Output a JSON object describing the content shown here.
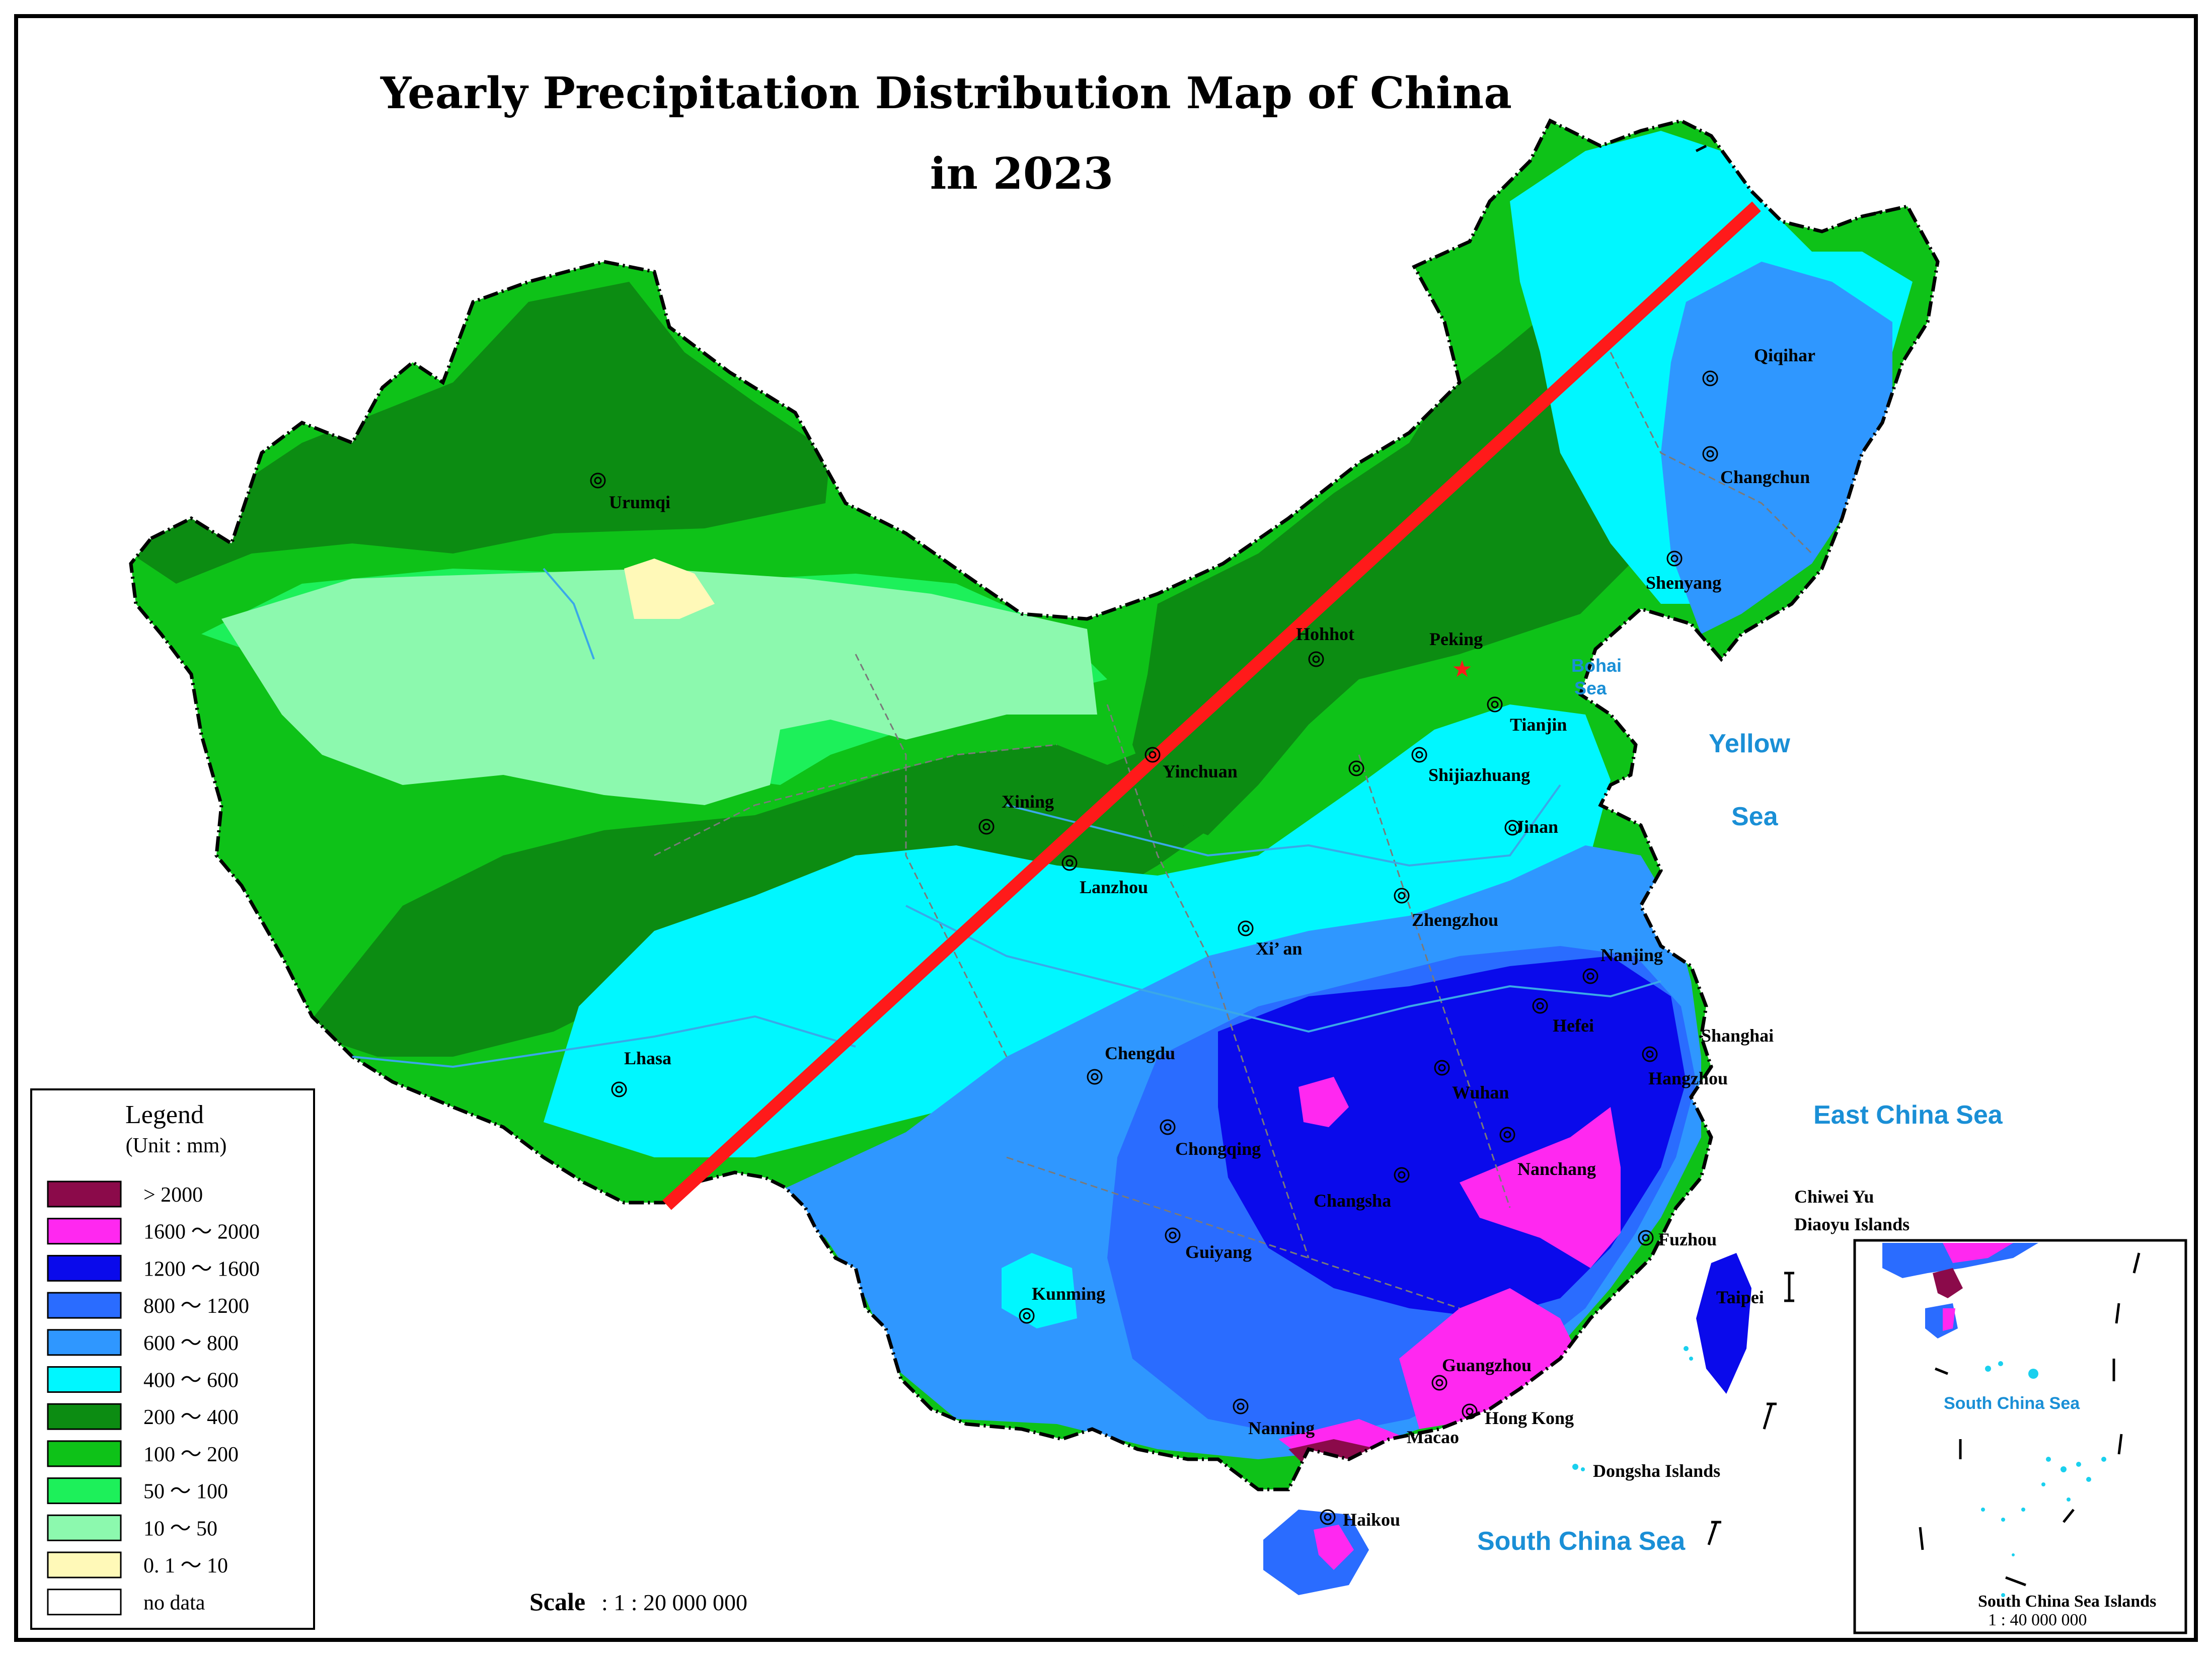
{
  "title": {
    "line1": "Yearly Precipitation Distribution Map of China",
    "line2": "in 2023"
  },
  "legend": {
    "title": "Legend",
    "unit": "(Unit : mm)",
    "items": [
      {
        "label": "> 2000",
        "color": "#8b0a4a"
      },
      {
        "label": "1600 ～ 2000",
        "color": "#ff28f0"
      },
      {
        "label": "1200 ～ 1600",
        "color": "#0a0aeb"
      },
      {
        "label": "800 ～ 1200",
        "color": "#2a6cff"
      },
      {
        "label": "600 ～ 800",
        "color": "#2f97ff"
      },
      {
        "label": "400 ～ 600",
        "color": "#00f7ff"
      },
      {
        "label": "200 ～ 400",
        "color": "#0c8c12"
      },
      {
        "label": "100 ～ 200",
        "color": "#0ec218"
      },
      {
        "label": "50 ～ 100",
        "color": "#1df05a"
      },
      {
        "label": "10 ～ 50",
        "color": "#8cf9ae"
      },
      {
        "label": "0. 1 ～ 10",
        "color": "#fff9b8"
      },
      {
        "label": "no data",
        "color": "#ffffff"
      }
    ]
  },
  "cities": {
    "urumqi": "Urumqi",
    "lhasa": "Lhasa",
    "xining": "Xining",
    "lanzhou": "Lanzhou",
    "yinchuan": "Yinchuan",
    "hohhot": "Hohhot",
    "peking": "Peking",
    "tianjin": "Tianjin",
    "shijiazhuang": "Shijiazhuang",
    "jinan": "Jinan",
    "zhengzhou": "Zhengzhou",
    "xian": "Xi’ an",
    "chengdu": "Chengdu",
    "chongqing": "Chongqing",
    "kunming": "Kunming",
    "guiyang": "Guiyang",
    "nanning": "Nanning",
    "changsha": "Changsha",
    "wuhan": "Wuhan",
    "nanchang": "Nanchang",
    "hefei": "Hefei",
    "nanjing": "Nanjing",
    "shanghai": "Shanghai",
    "hangzhou": "Hangzhou",
    "fuzhou": "Fuzhou",
    "taipei": "Taipei",
    "guangzhou": "Guangzhou",
    "hongkong": "Hong Kong",
    "macao": "Macao",
    "haikou": "Haikou",
    "qiqihar": "Qiqihar",
    "changchun": "Changchun",
    "shenyang": "Shenyang"
  },
  "seas": {
    "bohai_1": "Bohai",
    "bohai_2": "Sea",
    "yellow_1": "Yellow",
    "yellow_2": "Sea",
    "east_china": "East China Sea",
    "south_china": "South China Sea",
    "south_china_inset": "South China Sea"
  },
  "islands": {
    "chiwei": "Chiwei Yu",
    "diaoyu": "Diaoyu Islands",
    "dongsha": "Dongsha Islands",
    "scs_islands": "South China Sea Islands"
  },
  "scale": {
    "label": "Scale",
    "value": ": 1 : 20  000  000"
  },
  "inset_scale": "1 : 40  000  000",
  "divider_line": {
    "color": "#ff1a1a"
  }
}
